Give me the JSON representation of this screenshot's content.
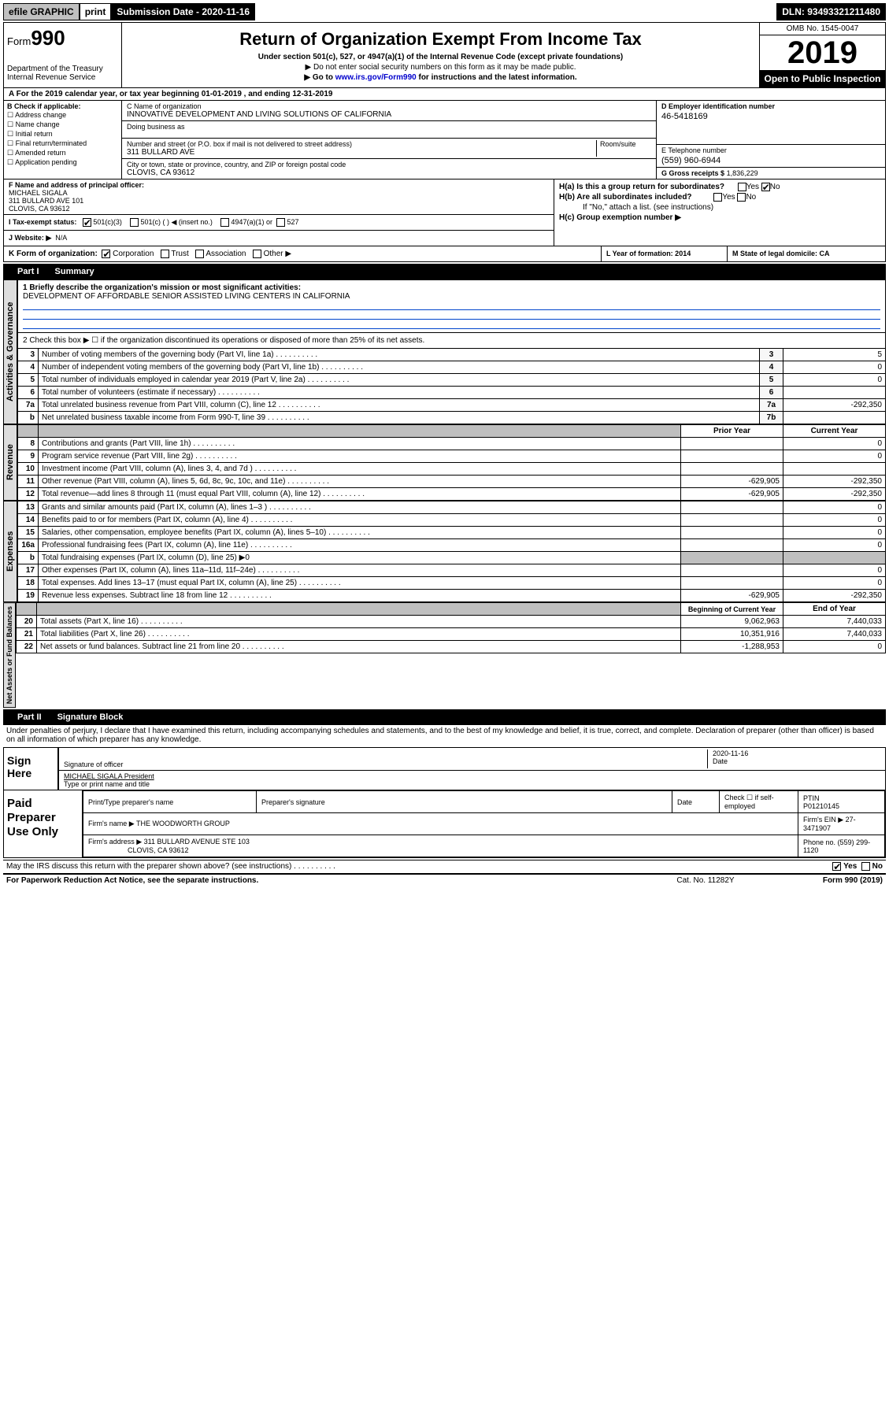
{
  "top": {
    "efile": "efile GRAPHIC",
    "print": "print",
    "subdate_label": "Submission Date - 2020-11-16",
    "dln": "DLN: 93493321211480"
  },
  "header": {
    "form_prefix": "Form",
    "form_num": "990",
    "title": "Return of Organization Exempt From Income Tax",
    "subtitle": "Under section 501(c), 527, or 4947(a)(1) of the Internal Revenue Code (except private foundations)",
    "line1": "▶ Do not enter social security numbers on this form as it may be made public.",
    "line2_pre": "▶ Go to ",
    "line2_link": "www.irs.gov/Form990",
    "line2_post": " for instructions and the latest information.",
    "dept": "Department of the Treasury\nInternal Revenue Service",
    "omb": "OMB No. 1545-0047",
    "year": "2019",
    "open": "Open to Public Inspection"
  },
  "row_a": "A For the 2019 calendar year, or tax year beginning 01-01-2019     , and ending 12-31-2019",
  "box_b": {
    "label": "B Check if applicable:",
    "items": [
      "Address change",
      "Name change",
      "Initial return",
      "Final return/terminated",
      "Amended return",
      "Application pending"
    ]
  },
  "box_c": {
    "name_label": "C Name of organization",
    "name": "INNOVATIVE DEVELOPMENT AND LIVING SOLUTIONS OF CALIFORNIA",
    "dba_label": "Doing business as",
    "addr_label": "Number and street (or P.O. box if mail is not delivered to street address)",
    "room_label": "Room/suite",
    "addr": "311 BULLARD AVE",
    "city_label": "City or town, state or province, country, and ZIP or foreign postal code",
    "city": "CLOVIS, CA  93612"
  },
  "box_d": {
    "label": "D Employer identification number",
    "val": "46-5418169"
  },
  "box_e": {
    "label": "E Telephone number",
    "val": "(559) 960-6944"
  },
  "box_g": {
    "label": "G Gross receipts $",
    "val": "1,836,229"
  },
  "box_f": {
    "label": "F Name and address of principal officer:",
    "name": "MICHAEL SIGALA",
    "addr": "311 BULLARD AVE 101",
    "city": "CLOVIS, CA  93612"
  },
  "box_h": {
    "a": "H(a)  Is this a group return for subordinates?",
    "a_ans_yes": "Yes",
    "a_ans_no": "No",
    "b": "H(b)  Are all subordinates included?",
    "b_note": "If \"No,\" attach a list. (see instructions)",
    "c": "H(c)  Group exemption number ▶"
  },
  "box_i": {
    "label": "I   Tax-exempt status:",
    "opts": [
      "501(c)(3)",
      "501(c) (  ) ◀ (insert no.)",
      "4947(a)(1) or",
      "527"
    ]
  },
  "box_j": {
    "label": "J   Website: ▶",
    "val": "N/A"
  },
  "box_k": {
    "label": "K Form of organization:",
    "opts": [
      "Corporation",
      "Trust",
      "Association",
      "Other ▶"
    ],
    "l": "L Year of formation: 2014",
    "m": "M State of legal domicile: CA"
  },
  "part1": {
    "title": "Part I",
    "name": "Summary",
    "q1": "1  Briefly describe the organization's mission or most significant activities:",
    "q1_val": "DEVELOPMENT OF AFFORDABLE SENIOR ASSISTED LIVING CENTERS IN CALIFORNIA",
    "q2": "2  Check this box ▶ ☐ if the organization discontinued its operations or disposed of more than 25% of its net assets.",
    "rows_gov": [
      {
        "n": "3",
        "d": "Number of voting members of the governing body (Part VI, line 1a)",
        "b": "3",
        "v": "5"
      },
      {
        "n": "4",
        "d": "Number of independent voting members of the governing body (Part VI, line 1b)",
        "b": "4",
        "v": "0"
      },
      {
        "n": "5",
        "d": "Total number of individuals employed in calendar year 2019 (Part V, line 2a)",
        "b": "5",
        "v": "0"
      },
      {
        "n": "6",
        "d": "Total number of volunteers (estimate if necessary)",
        "b": "6",
        "v": ""
      },
      {
        "n": "7a",
        "d": "Total unrelated business revenue from Part VIII, column (C), line 12",
        "b": "7a",
        "v": "-292,350"
      },
      {
        "n": "b",
        "d": "Net unrelated business taxable income from Form 990-T, line 39",
        "b": "7b",
        "v": ""
      }
    ],
    "header_prior": "Prior Year",
    "header_curr": "Current Year",
    "rows_rev": [
      {
        "n": "8",
        "d": "Contributions and grants (Part VIII, line 1h)",
        "p": "",
        "c": "0"
      },
      {
        "n": "9",
        "d": "Program service revenue (Part VIII, line 2g)",
        "p": "",
        "c": "0"
      },
      {
        "n": "10",
        "d": "Investment income (Part VIII, column (A), lines 3, 4, and 7d )",
        "p": "",
        "c": ""
      },
      {
        "n": "11",
        "d": "Other revenue (Part VIII, column (A), lines 5, 6d, 8c, 9c, 10c, and 11e)",
        "p": "-629,905",
        "c": "-292,350"
      },
      {
        "n": "12",
        "d": "Total revenue—add lines 8 through 11 (must equal Part VIII, column (A), line 12)",
        "p": "-629,905",
        "c": "-292,350"
      }
    ],
    "rows_exp": [
      {
        "n": "13",
        "d": "Grants and similar amounts paid (Part IX, column (A), lines 1–3 )",
        "p": "",
        "c": "0"
      },
      {
        "n": "14",
        "d": "Benefits paid to or for members (Part IX, column (A), line 4)",
        "p": "",
        "c": "0"
      },
      {
        "n": "15",
        "d": "Salaries, other compensation, employee benefits (Part IX, column (A), lines 5–10)",
        "p": "",
        "c": "0"
      },
      {
        "n": "16a",
        "d": "Professional fundraising fees (Part IX, column (A), line 11e)",
        "p": "",
        "c": "0"
      },
      {
        "n": "b",
        "d": "Total fundraising expenses (Part IX, column (D), line 25) ▶0",
        "shade": true
      },
      {
        "n": "17",
        "d": "Other expenses (Part IX, column (A), lines 11a–11d, 11f–24e)",
        "p": "",
        "c": "0"
      },
      {
        "n": "18",
        "d": "Total expenses. Add lines 13–17 (must equal Part IX, column (A), line 25)",
        "p": "",
        "c": "0"
      },
      {
        "n": "19",
        "d": "Revenue less expenses. Subtract line 18 from line 12",
        "p": "-629,905",
        "c": "-292,350"
      }
    ],
    "header_beg": "Beginning of Current Year",
    "header_end": "End of Year",
    "rows_net": [
      {
        "n": "20",
        "d": "Total assets (Part X, line 16)",
        "p": "9,062,963",
        "c": "7,440,033"
      },
      {
        "n": "21",
        "d": "Total liabilities (Part X, line 26)",
        "p": "10,351,916",
        "c": "7,440,033"
      },
      {
        "n": "22",
        "d": "Net assets or fund balances. Subtract line 21 from line 20",
        "p": "-1,288,953",
        "c": "0"
      }
    ],
    "vert_gov": "Activities & Governance",
    "vert_rev": "Revenue",
    "vert_exp": "Expenses",
    "vert_net": "Net Assets or Fund Balances"
  },
  "part2": {
    "title": "Part II",
    "name": "Signature Block",
    "decl": "Under penalties of perjury, I declare that I have examined this return, including accompanying schedules and statements, and to the best of my knowledge and belief, it is true, correct, and complete. Declaration of preparer (other than officer) is based on all information of which preparer has any knowledge.",
    "sign_here": "Sign Here",
    "sig_officer": "Signature of officer",
    "sig_date": "2020-11-16",
    "date_label": "Date",
    "sig_name": "MICHAEL SIGALA  President",
    "sig_name_label": "Type or print name and title",
    "paid": "Paid Preparer Use Only",
    "prep_name_label": "Print/Type preparer's name",
    "prep_sig_label": "Preparer's signature",
    "prep_date_label": "Date",
    "prep_check": "Check ☐ if self-employed",
    "ptin_label": "PTIN",
    "ptin": "P01210145",
    "firm_name_label": "Firm's name     ▶",
    "firm_name": "THE WOODWORTH GROUP",
    "firm_ein_label": "Firm's EIN ▶",
    "firm_ein": "27-3471907",
    "firm_addr_label": "Firm's address ▶",
    "firm_addr": "311 BULLARD AVENUE STE 103",
    "firm_city": "CLOVIS, CA  93612",
    "phone_label": "Phone no.",
    "phone": "(559) 299-1120"
  },
  "footer": {
    "discuss": "May the IRS discuss this return with the preparer shown above? (see instructions)",
    "yes": "Yes",
    "no": "No",
    "paperwork": "For Paperwork Reduction Act Notice, see the separate instructions.",
    "cat": "Cat. No. 11282Y",
    "form": "Form 990 (2019)"
  },
  "colors": {
    "link": "#0000cc",
    "shade": "#bfbfbf",
    "header_bg": "#000000"
  }
}
